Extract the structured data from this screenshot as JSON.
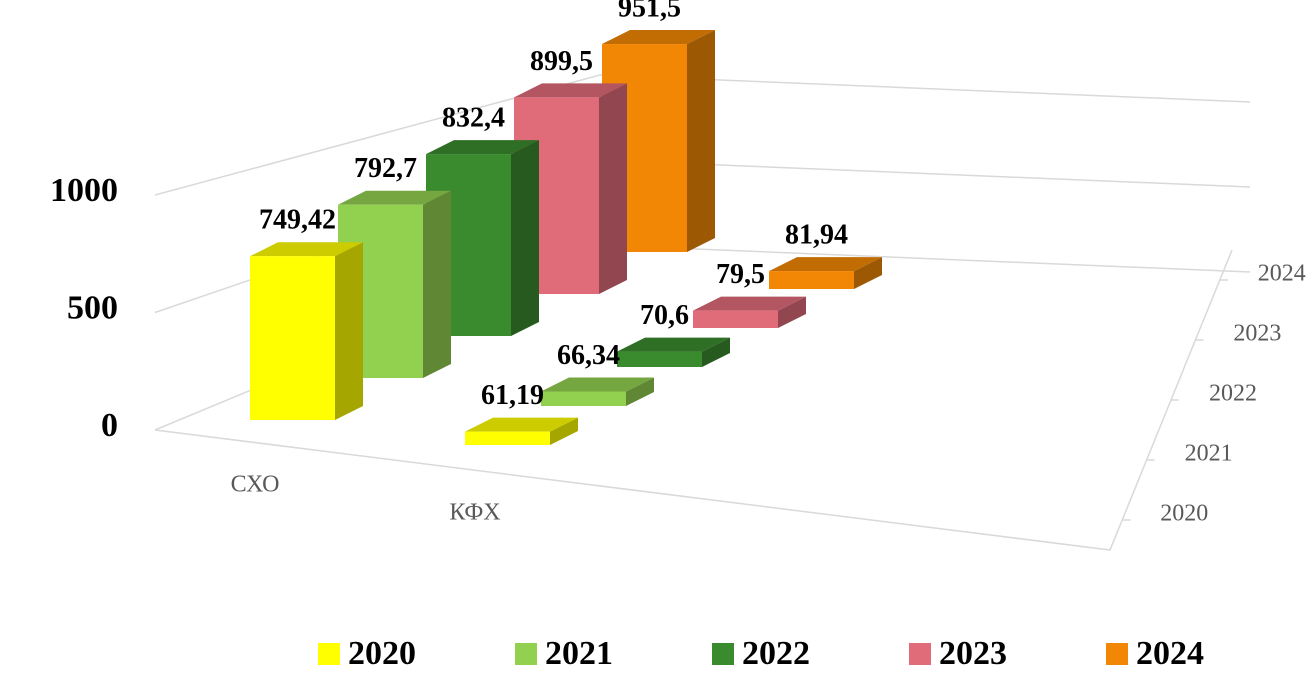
{
  "chart_data": {
    "type": "bar3d",
    "categories": [
      "СХО",
      "КФХ"
    ],
    "series": [
      {
        "name": "2020",
        "color": "#ffff00",
        "values": [
          749.42,
          61.19
        ],
        "value_labels": [
          "749,42",
          "61,19"
        ]
      },
      {
        "name": "2021",
        "color": "#92d050",
        "values": [
          792.7,
          66.34
        ],
        "value_labels": [
          "792,7",
          "66,34"
        ]
      },
      {
        "name": "2022",
        "color": "#3a8a2e",
        "values": [
          832.4,
          70.6
        ],
        "value_labels": [
          "832,4",
          "70,6"
        ]
      },
      {
        "name": "2023",
        "color": "#e06c7a",
        "values": [
          899.5,
          79.5
        ],
        "value_labels": [
          "899,5",
          "79,5"
        ]
      },
      {
        "name": "2024",
        "color": "#f28705",
        "values": [
          951.5,
          81.94
        ],
        "value_labels": [
          "951,5",
          "81,94"
        ]
      }
    ],
    "ylim": [
      0,
      1000
    ],
    "yticks": [
      0,
      500,
      1000
    ],
    "grid": true,
    "legend": "bottom"
  }
}
